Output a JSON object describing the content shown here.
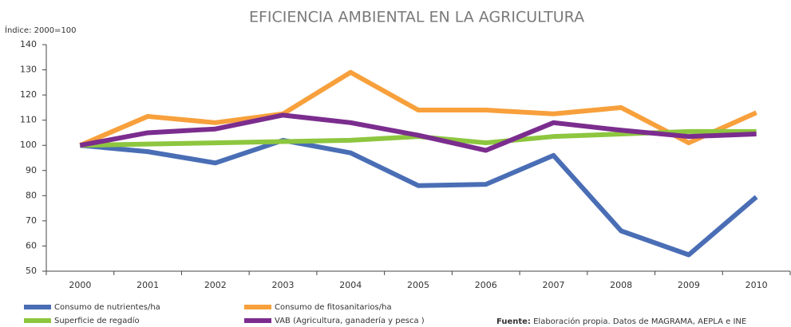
{
  "chart_data": {
    "type": "line",
    "title": "EFICIENCIA AMBIENTAL EN LA AGRICULTURA",
    "y_axis_label": "Índice: 2000=100",
    "categories": [
      "2000",
      "2001",
      "2002",
      "2003",
      "2004",
      "2005",
      "2006",
      "2007",
      "2008",
      "2009",
      "2010"
    ],
    "series": [
      {
        "name": "Consumo de nutrientes/ha",
        "color": "#4a6eb5",
        "values": [
          100,
          97.5,
          93,
          102,
          97,
          84,
          84.5,
          96,
          66,
          56.5,
          79.5
        ]
      },
      {
        "name": "Consumo de fitosanitarios/ha",
        "color": "#f7a03c",
        "values": [
          100,
          111.5,
          109,
          112.5,
          129,
          114,
          114,
          112.5,
          115,
          101,
          113
        ]
      },
      {
        "name": "Superficie de regadío",
        "color": "#8dc63f",
        "values": [
          100,
          100.5,
          101,
          101.5,
          102,
          103.5,
          101,
          103.5,
          104.5,
          105.5,
          105.5
        ]
      },
      {
        "name": "VAB (Agricultura, ganadería y pesca )",
        "color": "#7b2d8e",
        "values": [
          100,
          105,
          106.5,
          112,
          109,
          104,
          98,
          109,
          106,
          103.5,
          104.5
        ]
      }
    ],
    "ylim": [
      50,
      140
    ],
    "yticks": [
      50,
      60,
      70,
      80,
      90,
      100,
      110,
      120,
      130,
      140
    ],
    "source_label": "Fuente:",
    "source": "Elaboración propia. Datos de  MAGRAMA, AEPLA e INE"
  }
}
